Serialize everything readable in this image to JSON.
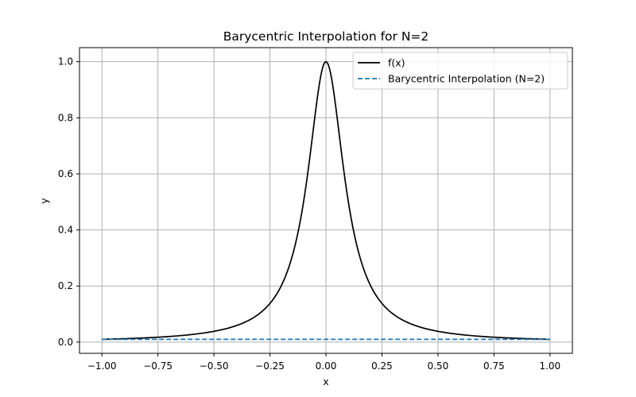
{
  "chart_data": {
    "type": "line",
    "title": "Barycentric Interpolation for N=2",
    "xlabel": "x",
    "ylabel": "y",
    "xlim": [
      -1.1,
      1.1
    ],
    "ylim": [
      -0.04,
      1.05
    ],
    "grid": true,
    "legend_position": "top-right",
    "x_ticks": [
      -1.0,
      -0.75,
      -0.5,
      -0.25,
      0.0,
      0.25,
      0.5,
      0.75,
      1.0
    ],
    "x_tick_labels": [
      "−1.00",
      "−0.75",
      "−0.50",
      "−0.25",
      "0.00",
      "0.25",
      "0.50",
      "0.75",
      "1.00"
    ],
    "y_ticks": [
      0.0,
      0.2,
      0.4,
      0.6,
      0.8,
      1.0
    ],
    "y_tick_labels": [
      "0.0",
      "0.2",
      "0.4",
      "0.6",
      "0.8",
      "1.0"
    ],
    "series": [
      {
        "name": "f(x)",
        "function": "1/(1+100x^2)",
        "color": "#000000",
        "style": "solid",
        "x": [
          -1.0,
          -0.9,
          -0.8,
          -0.7,
          -0.6,
          -0.5,
          -0.45,
          -0.4,
          -0.35,
          -0.3,
          -0.25,
          -0.2,
          -0.15,
          -0.12,
          -0.1,
          -0.08,
          -0.06,
          -0.04,
          -0.02,
          0.0,
          0.02,
          0.04,
          0.06,
          0.08,
          0.1,
          0.12,
          0.15,
          0.2,
          0.25,
          0.3,
          0.35,
          0.4,
          0.45,
          0.5,
          0.6,
          0.7,
          0.8,
          0.9,
          1.0
        ],
        "y": [
          0.0099,
          0.0122,
          0.0154,
          0.02,
          0.027,
          0.0385,
          0.0471,
          0.0588,
          0.0755,
          0.1,
          0.1379,
          0.2,
          0.3077,
          0.4098,
          0.5,
          0.6098,
          0.7353,
          0.8621,
          0.9615,
          1.0,
          0.9615,
          0.8621,
          0.7353,
          0.6098,
          0.5,
          0.4098,
          0.3077,
          0.2,
          0.1379,
          0.1,
          0.0755,
          0.0588,
          0.0471,
          0.0385,
          0.027,
          0.02,
          0.0154,
          0.0122,
          0.0099
        ]
      },
      {
        "name": "Barycentric Interpolation (N=2)",
        "color": "#1f77b4",
        "style": "dashed",
        "x": [
          -1.0,
          1.0
        ],
        "y": [
          0.0099,
          0.0099
        ]
      }
    ]
  }
}
